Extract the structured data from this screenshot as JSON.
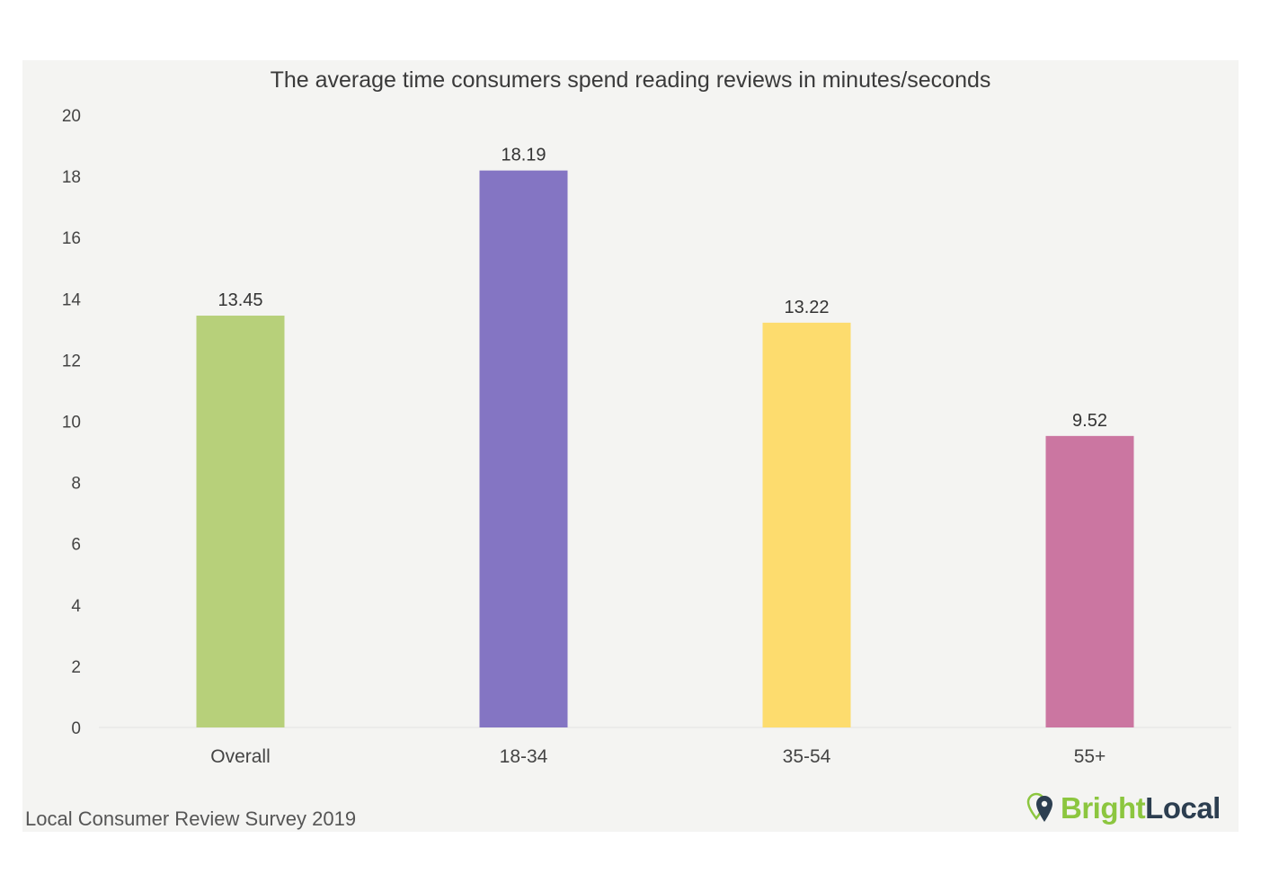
{
  "chart_data": {
    "type": "bar",
    "title": "The average time consumers spend reading reviews in minutes/seconds",
    "categories": [
      "Overall",
      "18-34",
      "35-54",
      "55+"
    ],
    "values": [
      13.45,
      18.19,
      13.22,
      9.52
    ],
    "value_labels": [
      "13.45",
      "18.19",
      "13.22",
      "9.52"
    ],
    "colors": [
      "#b7d07a",
      "#8475c3",
      "#fddc6e",
      "#cb76a1"
    ],
    "xlabel": "",
    "ylabel": "",
    "ylim": [
      0,
      20
    ],
    "yticks": [
      0,
      2,
      4,
      6,
      8,
      10,
      12,
      14,
      16,
      18,
      20
    ],
    "grid": false,
    "legend": "none"
  },
  "footer": {
    "source": "Local Consumer Review Survey 2019",
    "brand_part1": "Bright",
    "brand_part2": "Local",
    "brand_icon": "map-pin-icon"
  }
}
